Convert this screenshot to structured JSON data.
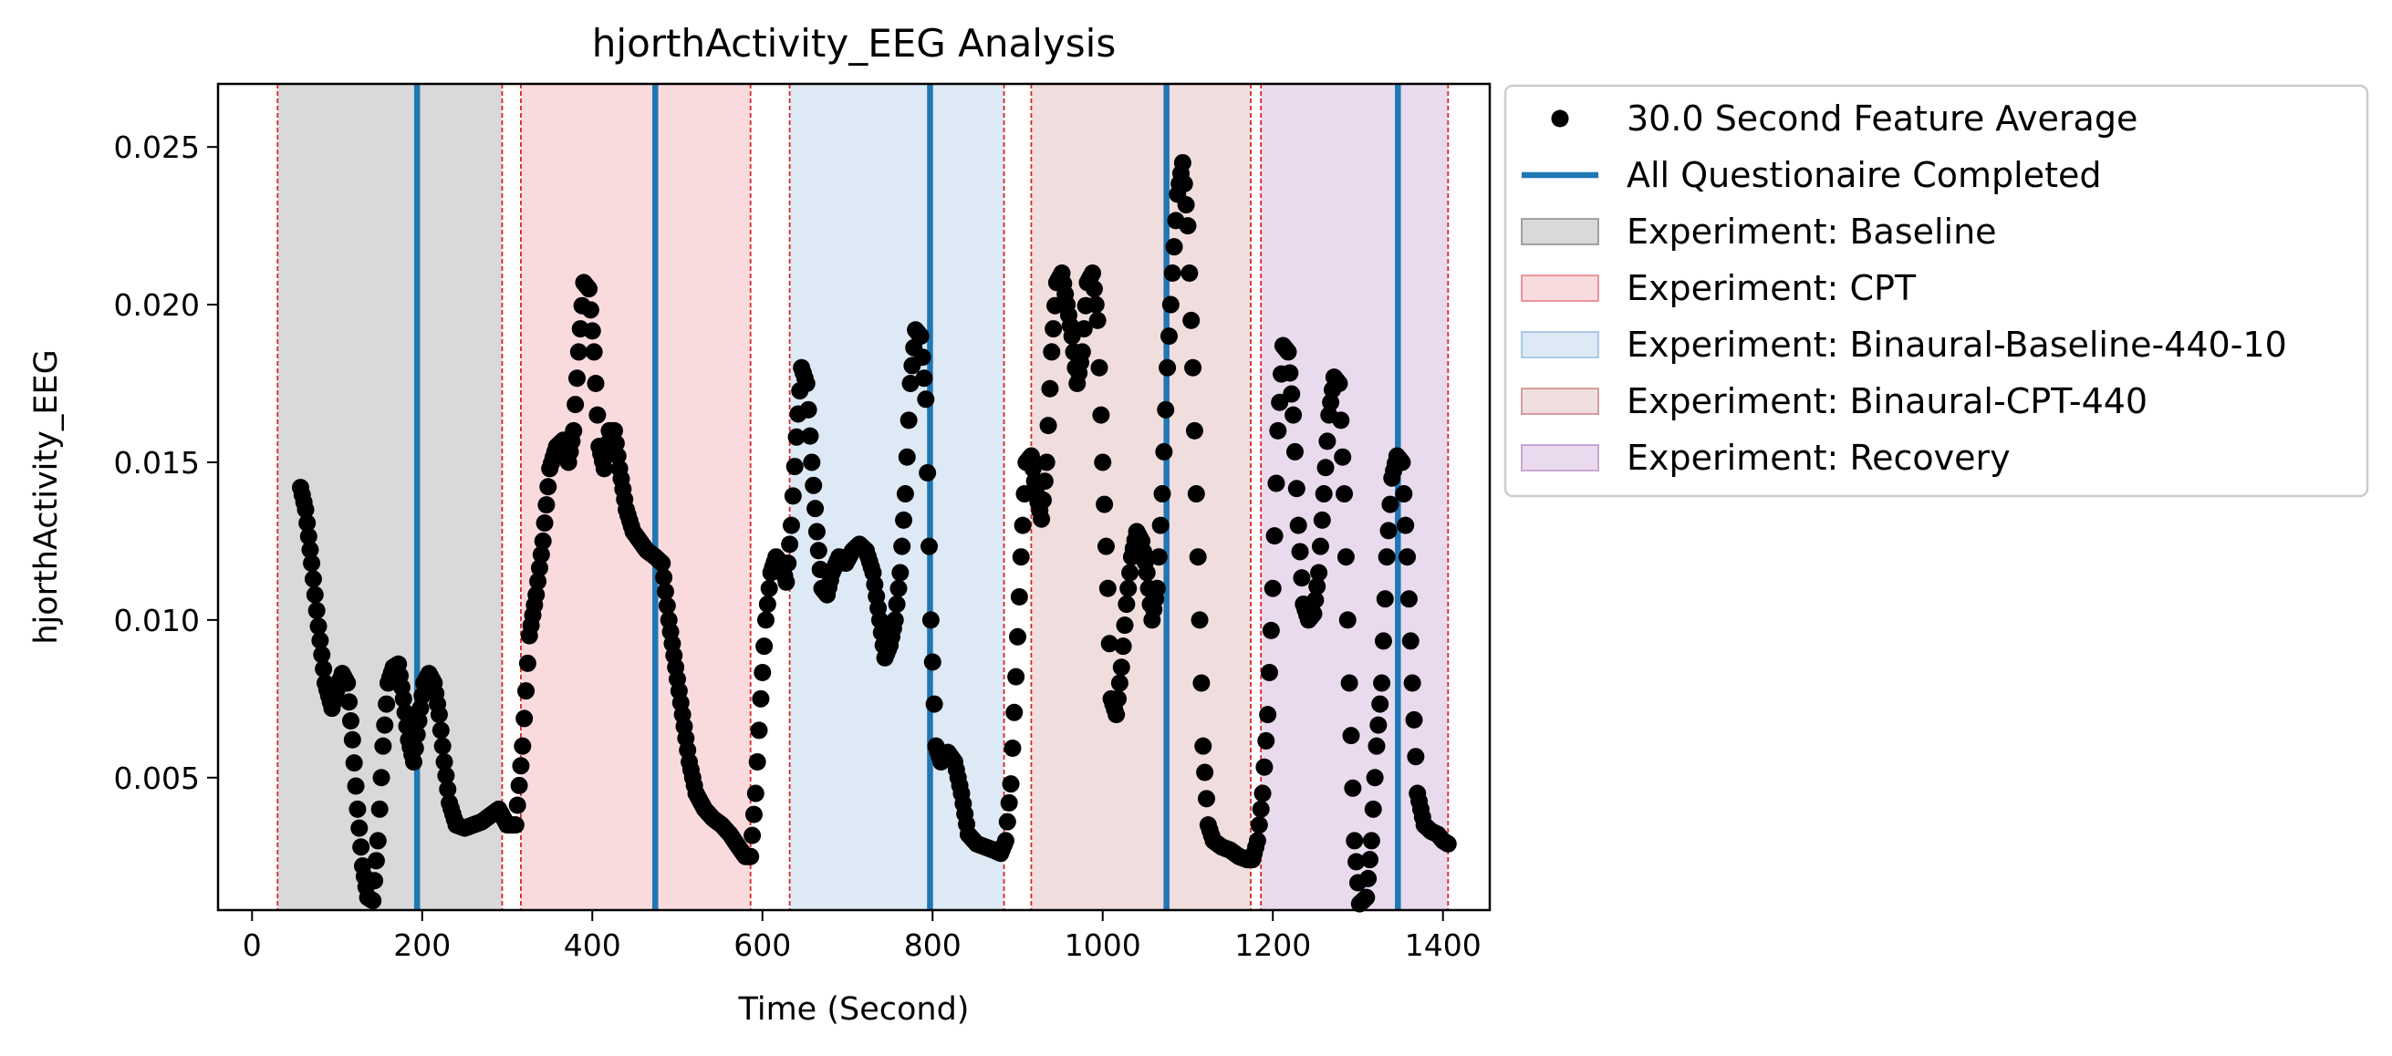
{
  "chart_data": {
    "type": "scatter",
    "title": "hjorthActivity_EEG Analysis",
    "xlabel": "Time (Second)",
    "ylabel": "hjorthActivity_EEG",
    "xlim": [
      -40,
      1455
    ],
    "ylim": [
      0.0008,
      0.027
    ],
    "xticks": [
      0,
      200,
      400,
      600,
      800,
      1000,
      1200,
      1400
    ],
    "xtick_labels": [
      "0",
      "200",
      "400",
      "600",
      "800",
      "1000",
      "1200",
      "1400"
    ],
    "yticks": [
      0.005,
      0.01,
      0.015,
      0.02,
      0.025
    ],
    "ytick_labels": [
      "0.005",
      "0.010",
      "0.015",
      "0.020",
      "0.025"
    ],
    "grid": false,
    "legend_placement": "outside upper-right",
    "series": [
      {
        "name": "30.0 Second Feature Average",
        "kind": "scatter",
        "color": "#000000",
        "key_points": [
          [
            57,
            0.0142
          ],
          [
            63,
            0.0135
          ],
          [
            70,
            0.0118
          ],
          [
            78,
            0.0098
          ],
          [
            86,
            0.008
          ],
          [
            94,
            0.0072
          ],
          [
            100,
            0.0078
          ],
          [
            106,
            0.0083
          ],
          [
            112,
            0.008
          ],
          [
            118,
            0.0062
          ],
          [
            124,
            0.004
          ],
          [
            130,
            0.0022
          ],
          [
            136,
            0.0012
          ],
          [
            142,
            0.0011
          ],
          [
            148,
            0.003
          ],
          [
            154,
            0.006
          ],
          [
            160,
            0.008
          ],
          [
            166,
            0.0085
          ],
          [
            172,
            0.0086
          ],
          [
            178,
            0.0075
          ],
          [
            184,
            0.0062
          ],
          [
            190,
            0.0055
          ],
          [
            196,
            0.0068
          ],
          [
            202,
            0.008
          ],
          [
            208,
            0.0083
          ],
          [
            214,
            0.008
          ],
          [
            220,
            0.007
          ],
          [
            226,
            0.0055
          ],
          [
            232,
            0.0042
          ],
          [
            240,
            0.0035
          ],
          [
            250,
            0.0034
          ],
          [
            260,
            0.0035
          ],
          [
            270,
            0.0036
          ],
          [
            280,
            0.0038
          ],
          [
            290,
            0.004
          ],
          [
            300,
            0.0035
          ],
          [
            310,
            0.0035
          ],
          [
            318,
            0.006
          ],
          [
            326,
            0.0095
          ],
          [
            334,
            0.0108
          ],
          [
            342,
            0.0125
          ],
          [
            350,
            0.0148
          ],
          [
            358,
            0.0155
          ],
          [
            366,
            0.0157
          ],
          [
            372,
            0.015
          ],
          [
            378,
            0.016
          ],
          [
            384,
            0.0185
          ],
          [
            390,
            0.0207
          ],
          [
            396,
            0.0205
          ],
          [
            402,
            0.0185
          ],
          [
            408,
            0.0155
          ],
          [
            414,
            0.0148
          ],
          [
            420,
            0.016
          ],
          [
            426,
            0.016
          ],
          [
            432,
            0.0148
          ],
          [
            440,
            0.0135
          ],
          [
            448,
            0.0128
          ],
          [
            456,
            0.0125
          ],
          [
            464,
            0.0122
          ],
          [
            474,
            0.012
          ],
          [
            482,
            0.0118
          ],
          [
            490,
            0.01
          ],
          [
            498,
            0.0085
          ],
          [
            506,
            0.007
          ],
          [
            514,
            0.0055
          ],
          [
            522,
            0.0045
          ],
          [
            532,
            0.004
          ],
          [
            542,
            0.0037
          ],
          [
            552,
            0.0035
          ],
          [
            562,
            0.0032
          ],
          [
            572,
            0.0028
          ],
          [
            580,
            0.0025
          ],
          [
            586,
            0.0025
          ],
          [
            592,
            0.0045
          ],
          [
            598,
            0.0075
          ],
          [
            604,
            0.01
          ],
          [
            610,
            0.0115
          ],
          [
            616,
            0.012
          ],
          [
            622,
            0.0118
          ],
          [
            628,
            0.0112
          ],
          [
            634,
            0.013
          ],
          [
            640,
            0.0158
          ],
          [
            646,
            0.018
          ],
          [
            652,
            0.0175
          ],
          [
            658,
            0.015
          ],
          [
            664,
            0.0128
          ],
          [
            670,
            0.011
          ],
          [
            676,
            0.0108
          ],
          [
            682,
            0.0115
          ],
          [
            690,
            0.012
          ],
          [
            698,
            0.0118
          ],
          [
            706,
            0.0122
          ],
          [
            714,
            0.0124
          ],
          [
            722,
            0.0122
          ],
          [
            730,
            0.0115
          ],
          [
            738,
            0.01
          ],
          [
            744,
            0.0088
          ],
          [
            750,
            0.0092
          ],
          [
            756,
            0.01
          ],
          [
            762,
            0.0115
          ],
          [
            768,
            0.014
          ],
          [
            774,
            0.0175
          ],
          [
            780,
            0.0192
          ],
          [
            786,
            0.019
          ],
          [
            792,
            0.017
          ],
          [
            798,
            0.01
          ],
          [
            804,
            0.006
          ],
          [
            810,
            0.0055
          ],
          [
            818,
            0.0058
          ],
          [
            826,
            0.0055
          ],
          [
            834,
            0.0045
          ],
          [
            842,
            0.0032
          ],
          [
            852,
            0.0029
          ],
          [
            862,
            0.0028
          ],
          [
            872,
            0.0027
          ],
          [
            880,
            0.0026
          ],
          [
            886,
            0.003
          ],
          [
            892,
            0.0048
          ],
          [
            898,
            0.0082
          ],
          [
            904,
            0.012
          ],
          [
            910,
            0.015
          ],
          [
            916,
            0.0152
          ],
          [
            922,
            0.014
          ],
          [
            928,
            0.0132
          ],
          [
            934,
            0.015
          ],
          [
            940,
            0.0185
          ],
          [
            946,
            0.0207
          ],
          [
            952,
            0.021
          ],
          [
            958,
            0.02
          ],
          [
            964,
            0.019
          ],
          [
            970,
            0.0175
          ],
          [
            976,
            0.0185
          ],
          [
            982,
            0.0207
          ],
          [
            988,
            0.021
          ],
          [
            994,
            0.0195
          ],
          [
            1000,
            0.015
          ],
          [
            1006,
            0.011
          ],
          [
            1010,
            0.0075
          ],
          [
            1016,
            0.007
          ],
          [
            1022,
            0.0085
          ],
          [
            1028,
            0.0105
          ],
          [
            1034,
            0.012
          ],
          [
            1040,
            0.0128
          ],
          [
            1046,
            0.0125
          ],
          [
            1052,
            0.0115
          ],
          [
            1058,
            0.01
          ],
          [
            1064,
            0.011
          ],
          [
            1070,
            0.014
          ],
          [
            1076,
            0.018
          ],
          [
            1082,
            0.021
          ],
          [
            1088,
            0.0235
          ],
          [
            1094,
            0.0245
          ],
          [
            1100,
            0.0225
          ],
          [
            1106,
            0.018
          ],
          [
            1112,
            0.012
          ],
          [
            1118,
            0.006
          ],
          [
            1124,
            0.0035
          ],
          [
            1130,
            0.003
          ],
          [
            1140,
            0.0028
          ],
          [
            1150,
            0.0027
          ],
          [
            1160,
            0.0025
          ],
          [
            1170,
            0.0024
          ],
          [
            1176,
            0.0024
          ],
          [
            1182,
            0.003
          ],
          [
            1188,
            0.0045
          ],
          [
            1194,
            0.007
          ],
          [
            1200,
            0.011
          ],
          [
            1206,
            0.016
          ],
          [
            1212,
            0.0187
          ],
          [
            1218,
            0.0185
          ],
          [
            1224,
            0.0165
          ],
          [
            1230,
            0.013
          ],
          [
            1236,
            0.0105
          ],
          [
            1242,
            0.01
          ],
          [
            1248,
            0.0102
          ],
          [
            1254,
            0.0115
          ],
          [
            1260,
            0.014
          ],
          [
            1266,
            0.0165
          ],
          [
            1272,
            0.0177
          ],
          [
            1278,
            0.0175
          ],
          [
            1284,
            0.014
          ],
          [
            1290,
            0.008
          ],
          [
            1296,
            0.003
          ],
          [
            1302,
            0.001
          ],
          [
            1310,
            0.0012
          ],
          [
            1316,
            0.003
          ],
          [
            1322,
            0.006
          ],
          [
            1328,
            0.008
          ],
          [
            1334,
            0.012
          ],
          [
            1340,
            0.0145
          ],
          [
            1346,
            0.0152
          ],
          [
            1352,
            0.015
          ],
          [
            1358,
            0.012
          ],
          [
            1364,
            0.008
          ],
          [
            1370,
            0.0045
          ],
          [
            1378,
            0.0035
          ],
          [
            1386,
            0.0033
          ],
          [
            1394,
            0.0032
          ],
          [
            1400,
            0.003
          ],
          [
            1406,
            0.0029
          ]
        ]
      },
      {
        "name": "All Questionaire Completed",
        "kind": "vline",
        "color": "#1f77b4",
        "x": [
          194,
          474,
          797,
          1075,
          1347
        ]
      }
    ],
    "spans": [
      {
        "name": "Experiment: Baseline",
        "color": "#808080",
        "opacity": 0.3,
        "ranges": [
          [
            30,
            294
          ]
        ]
      },
      {
        "name": "Experiment: CPT",
        "color": "#e8717b",
        "opacity": 0.25,
        "ranges": [
          [
            316,
            586
          ]
        ]
      },
      {
        "name": "Experiment: Binaural-Baseline-440-10",
        "color": "#8fb6dc",
        "opacity": 0.3,
        "ranges": [
          [
            632,
            884
          ]
        ]
      },
      {
        "name": "Experiment: Binaural-CPT-440",
        "color": "#c47a7a",
        "opacity": 0.25,
        "ranges": [
          [
            916,
            1174
          ]
        ]
      },
      {
        "name": "Experiment: Recovery",
        "color": "#b689c4",
        "opacity": 0.3,
        "ranges": [
          [
            1186,
            1406
          ]
        ]
      }
    ],
    "boundary_lines": {
      "color": "#d62728",
      "x": [
        30,
        294,
        316,
        586,
        632,
        884,
        916,
        1174,
        1186,
        1406
      ]
    },
    "legend": [
      {
        "label": "30.0 Second Feature Average",
        "kind": "marker",
        "color": "#000000"
      },
      {
        "label": "All Questionaire Completed",
        "kind": "line",
        "color": "#1f77b4"
      },
      {
        "label": "Experiment: Baseline",
        "kind": "patch",
        "color": "#808080",
        "opacity": 0.3
      },
      {
        "label": "Experiment: CPT",
        "kind": "patch",
        "color": "#e8717b",
        "opacity": 0.25
      },
      {
        "label": "Experiment: Binaural-Baseline-440-10",
        "kind": "patch",
        "color": "#8fb6dc",
        "opacity": 0.3
      },
      {
        "label": "Experiment: Binaural-CPT-440",
        "kind": "patch",
        "color": "#c47a7a",
        "opacity": 0.25
      },
      {
        "label": "Experiment: Recovery",
        "kind": "patch",
        "color": "#b689c4",
        "opacity": 0.3
      }
    ]
  }
}
